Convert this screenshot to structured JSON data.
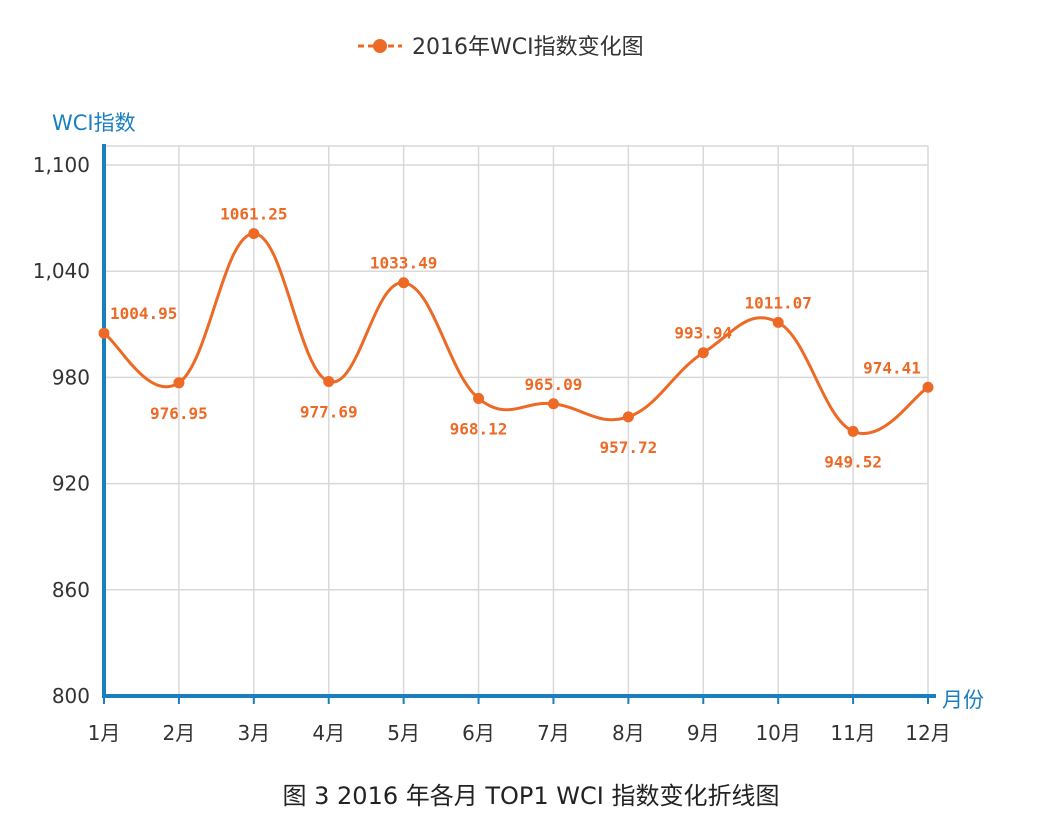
{
  "caption": "图 3  2016 年各月 TOP1 WCI 指数变化折线图",
  "colors": {
    "series": "#ec6a25",
    "axis": "#1a7fc1",
    "grid": "#d9d9d9",
    "text": "#333333"
  },
  "chart_data": {
    "type": "line",
    "smooth": true,
    "legend": {
      "position": "top-center",
      "entries": [
        "2016年WCI指数变化图"
      ]
    },
    "ylabel": "WCI指数",
    "xlabel": "月份",
    "categories": [
      "1月",
      "2月",
      "3月",
      "4月",
      "5月",
      "6月",
      "7月",
      "8月",
      "9月",
      "10月",
      "11月",
      "12月"
    ],
    "y_ticks": [
      800,
      860,
      920,
      980,
      1040,
      1100
    ],
    "y_tick_labels": [
      "800",
      "860",
      "920",
      "980",
      "1,040",
      "1,100"
    ],
    "ylim": [
      800,
      1100
    ],
    "grid": true,
    "series": [
      {
        "name": "2016年WCI指数变化图",
        "color": "#ec6a25",
        "values": [
          1004.95,
          976.95,
          1061.25,
          977.69,
          1033.49,
          968.12,
          965.09,
          957.72,
          993.94,
          1011.07,
          949.52,
          974.41
        ],
        "labels": [
          "1004.95",
          "976.95",
          "1061.25",
          "977.69",
          "1033.49",
          "968.12",
          "965.09",
          "957.72",
          "993.94",
          "1011.07",
          "949.52",
          "974.41"
        ],
        "label_side": [
          "above",
          "below",
          "above",
          "below",
          "above",
          "below",
          "above",
          "below",
          "above",
          "above",
          "below",
          "above"
        ]
      }
    ]
  }
}
